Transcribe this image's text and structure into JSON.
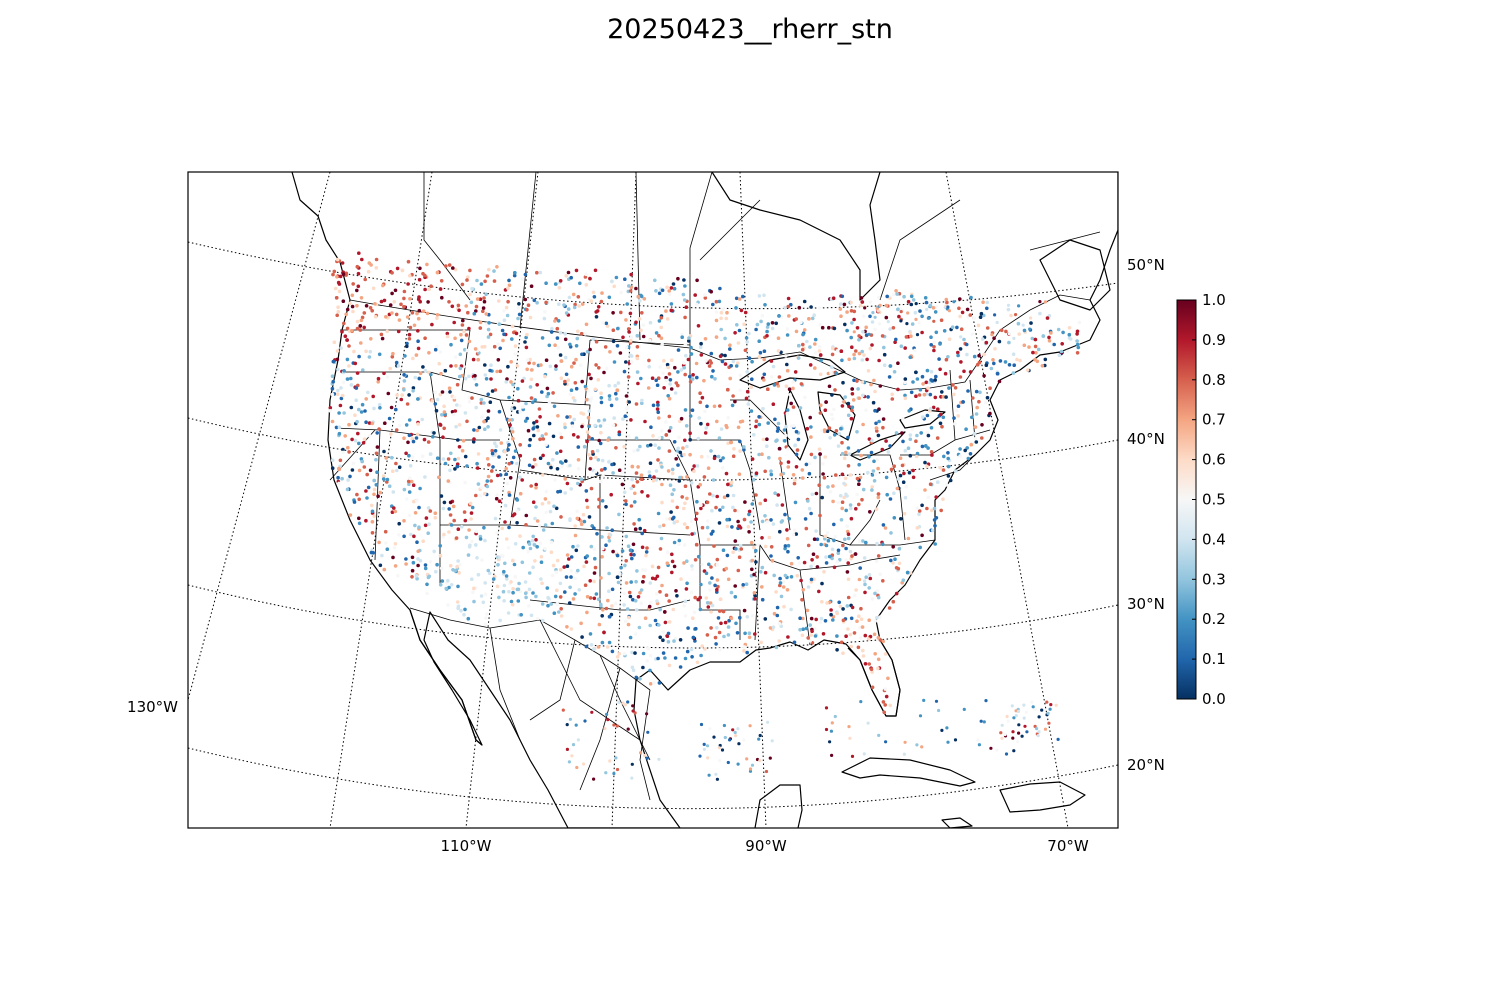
{
  "title": "20250423__rherr_stn",
  "lat_labels": [
    {
      "label": "50°N",
      "lat": 50
    },
    {
      "label": "40°N",
      "lat": 40
    },
    {
      "label": "30°N",
      "lat": 30
    },
    {
      "label": "20°N",
      "lat": 20
    }
  ],
  "lon_labels": [
    {
      "label": "130°W",
      "lon": -130
    },
    {
      "label": "110°W",
      "lon": -110
    },
    {
      "label": "90°W",
      "lon": -90
    },
    {
      "label": "70°W",
      "lon": -70
    }
  ],
  "colorbar": {
    "min": 0.0,
    "max": 1.0,
    "ticks": [
      "0.0",
      "0.1",
      "0.2",
      "0.3",
      "0.4",
      "0.5",
      "0.6",
      "0.7",
      "0.8",
      "0.9",
      "1.0"
    ],
    "colormap": "RdBu_r",
    "stops": [
      "#053061",
      "#2166ac",
      "#4393c3",
      "#92c5de",
      "#d1e5f0",
      "#f7f7f7",
      "#fddbc7",
      "#f4a582",
      "#d6604d",
      "#b2182b",
      "#67001f"
    ]
  },
  "map": {
    "extent": "contiguous-us-mexico-southern-canada",
    "graticule": "dotted",
    "lon_lines": [
      -130,
      -120,
      -110,
      -100,
      -90,
      -80,
      -70
    ],
    "lat_lines": [
      20,
      30,
      40,
      50
    ]
  }
}
